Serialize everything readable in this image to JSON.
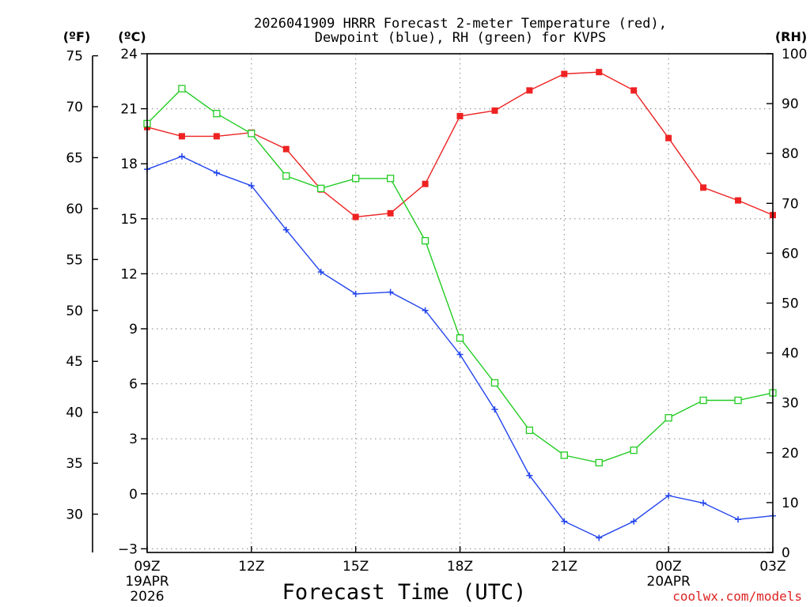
{
  "chart_data": {
    "type": "line",
    "title_line1": "2026041909 HRRR Forecast 2-meter Temperature (red),",
    "title_line2": "Dewpoint (blue), RH (green) for KVPS",
    "unit_fahrenheit": "(ºF)",
    "unit_celsius": "(ºC)",
    "unit_rh": "(RH)",
    "xlabel": "Forecast Time (UTC)",
    "watermark": "coolwx.com/models",
    "x_ticks": [
      {
        "hour": 0,
        "label": "09Z",
        "sub1": "19APR",
        "sub2": "2026"
      },
      {
        "hour": 3,
        "label": "12Z",
        "sub1": "",
        "sub2": ""
      },
      {
        "hour": 6,
        "label": "15Z",
        "sub1": "",
        "sub2": ""
      },
      {
        "hour": 9,
        "label": "18Z",
        "sub1": "",
        "sub2": ""
      },
      {
        "hour": 12,
        "label": "21Z",
        "sub1": "",
        "sub2": ""
      },
      {
        "hour": 15,
        "label": "00Z",
        "sub1": "20APR",
        "sub2": ""
      },
      {
        "hour": 18,
        "label": "03Z",
        "sub1": "",
        "sub2": ""
      }
    ],
    "celsius_axis": {
      "ylim": [
        -3.2,
        24
      ],
      "ticks": [
        24,
        21,
        18,
        15,
        12,
        9,
        6,
        3,
        0,
        -3
      ],
      "tick_labels": [
        "24",
        "21",
        "18",
        "15",
        "12",
        "9",
        "6",
        "3",
        "0",
        "−3"
      ]
    },
    "fahrenheit_ticks": [
      {
        "value": 75,
        "label": "75"
      },
      {
        "value": 70,
        "label": "70"
      },
      {
        "value": 65,
        "label": "65"
      },
      {
        "value": 60,
        "label": "60"
      },
      {
        "value": 55,
        "label": "55"
      },
      {
        "value": 50,
        "label": "50"
      },
      {
        "value": 45,
        "label": "45"
      },
      {
        "value": 40,
        "label": "40"
      },
      {
        "value": 35,
        "label": "35"
      },
      {
        "value": 30,
        "label": "30"
      }
    ],
    "rh_axis": {
      "ylim": [
        0,
        100
      ],
      "ticks": [
        100,
        90,
        80,
        70,
        60,
        50,
        40,
        30,
        20,
        10,
        0
      ],
      "tick_labels": [
        "100",
        "90",
        "80",
        "70",
        "60",
        "50",
        "40",
        "30",
        "20",
        "10",
        "0"
      ]
    },
    "series": [
      {
        "name": "Temperature",
        "unit": "C",
        "color": "#ee2222",
        "marker": "filled-square",
        "hours": [
          0,
          1,
          2,
          3,
          4,
          5,
          6,
          7,
          8,
          9,
          10,
          11,
          12,
          13,
          14,
          15,
          16,
          17,
          18
        ],
        "values": [
          20.0,
          19.5,
          19.5,
          19.7,
          18.8,
          16.6,
          15.1,
          15.3,
          16.9,
          20.6,
          20.9,
          22.0,
          22.9,
          23.0,
          22.0,
          19.4,
          16.7,
          16.0,
          15.2
        ]
      },
      {
        "name": "Dewpoint",
        "unit": "C",
        "color": "#2244ee",
        "marker": "plus",
        "hours": [
          0,
          1,
          2,
          3,
          4,
          5,
          6,
          7,
          8,
          9,
          10,
          11,
          12,
          13,
          14,
          15,
          16,
          17,
          18
        ],
        "values": [
          17.7,
          18.4,
          17.5,
          16.8,
          14.4,
          12.1,
          10.9,
          11.0,
          10.0,
          7.6,
          4.6,
          1.0,
          -1.5,
          -2.4,
          -1.5,
          -0.1,
          -0.5,
          -1.4,
          -1.2
        ]
      },
      {
        "name": "RH",
        "unit": "%",
        "color": "#22cc22",
        "marker": "open-square",
        "hours": [
          0,
          1,
          2,
          3,
          4,
          5,
          6,
          7,
          8,
          9,
          10,
          11,
          12,
          13,
          14,
          15,
          16,
          17,
          18
        ],
        "values": [
          86.0,
          93.0,
          88.0,
          84.0,
          75.5,
          73.0,
          75.0,
          75.0,
          62.5,
          43.0,
          34.0,
          24.5,
          19.5,
          18.0,
          20.5,
          27.0,
          30.5,
          30.5,
          32.0
        ]
      }
    ]
  }
}
